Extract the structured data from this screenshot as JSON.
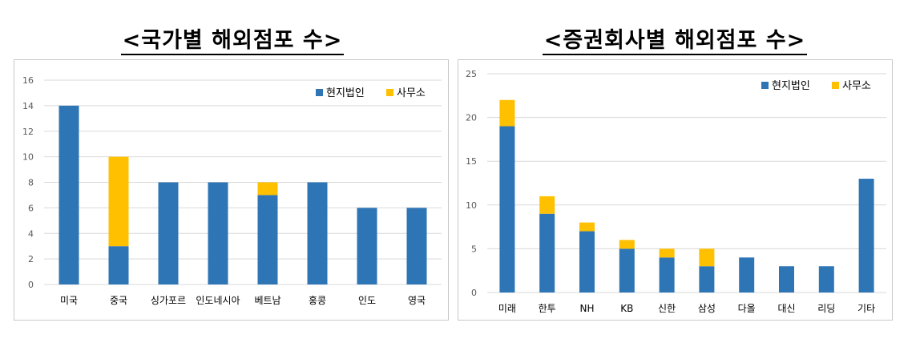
{
  "headings": {
    "left": "<국가별 해외점포 수>",
    "right": "<증권회사별 해외점포 수>"
  },
  "colors": {
    "subsidiary": "#2e75b6",
    "office": "#ffc000",
    "grid": "#d9d9d9",
    "axis_text": "#595959"
  },
  "chart_data": [
    {
      "type": "bar",
      "stacked": true,
      "categories": [
        "미국",
        "중국",
        "싱가포르",
        "인도네시아",
        "베트남",
        "홍콩",
        "인도",
        "영국"
      ],
      "series": [
        {
          "name": "현지법인",
          "color": "#2e75b6",
          "values": [
            14,
            3,
            8,
            8,
            7,
            8,
            6,
            6
          ]
        },
        {
          "name": "사무소",
          "color": "#ffc000",
          "values": [
            0,
            7,
            0,
            0,
            1,
            0,
            0,
            0
          ]
        }
      ],
      "ylim": [
        0,
        16
      ],
      "yticks": [
        0,
        2,
        4,
        6,
        8,
        10,
        12,
        14,
        16
      ],
      "grid": true,
      "legend": "top-right"
    },
    {
      "type": "bar",
      "stacked": true,
      "categories": [
        "미래",
        "한투",
        "NH",
        "KB",
        "신한",
        "삼성",
        "다올",
        "대신",
        "리딩",
        "기타"
      ],
      "series": [
        {
          "name": "현지법인",
          "color": "#2e75b6",
          "values": [
            19,
            9,
            7,
            5,
            4,
            3,
            4,
            3,
            3,
            13
          ]
        },
        {
          "name": "사무소",
          "color": "#ffc000",
          "values": [
            3,
            2,
            1,
            1,
            1,
            2,
            0,
            0,
            0,
            0
          ]
        }
      ],
      "ylim": [
        0,
        25
      ],
      "yticks": [
        0,
        5,
        10,
        15,
        20,
        25
      ],
      "grid": true,
      "legend": "top-right"
    }
  ]
}
